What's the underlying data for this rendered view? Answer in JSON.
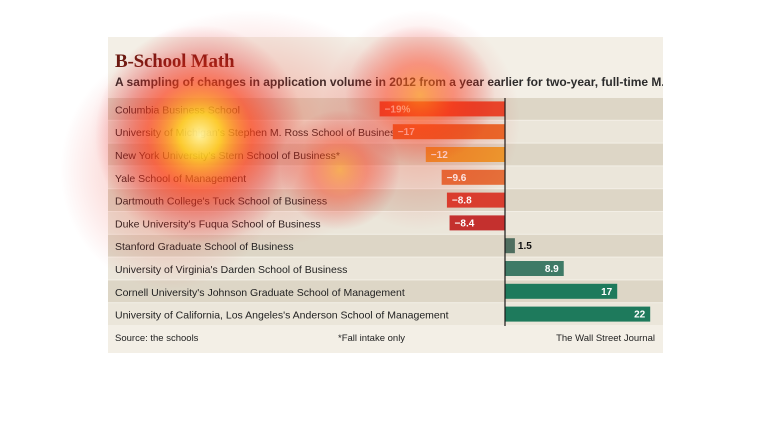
{
  "chart_data": {
    "type": "bar",
    "title": "B-School Math",
    "subtitle": "A sampling of changes in application volume in 2012 from a year earlier for two-year, full-time M.B.A. programs",
    "categories": [
      "Columbia Business School",
      "University of Michigan's Stephen M. Ross School of Business",
      "New York University's Stern School of Business*",
      "Yale School of Management",
      "Dartmouth College's Tuck School of Business",
      "Duke University's Fuqua School of Business",
      "Stanford Graduate School of Business",
      "University of Virginia's Darden School of Business",
      "Cornell University's Johnson Graduate School of Management",
      "University of California, Los Angeles's Anderson School of Management"
    ],
    "values": [
      -19,
      -17,
      -12,
      -9.6,
      -8.8,
      -8.4,
      1.5,
      8.9,
      17,
      22
    ],
    "value_labels": [
      "−19%",
      "−17",
      "−12",
      "−9.6",
      "−8.8",
      "−8.4",
      "1.5",
      "8.9",
      "17",
      "22"
    ],
    "xlim": [
      -23,
      22
    ],
    "colors": {
      "negative": [
        "#e8472b",
        "#e96a2a",
        "#ec9a2e",
        "#e5703a",
        "#d93e2f",
        "#c4302e"
      ],
      "positive": "#1e7a5c",
      "stripe_dark": "#ddd6c6",
      "stripe_light": "#ebe6da",
      "title": "#6b1a12"
    }
  },
  "footer": {
    "source": "Source: the schools",
    "note": "*Fall intake only",
    "credit": "The Wall Street Journal"
  }
}
